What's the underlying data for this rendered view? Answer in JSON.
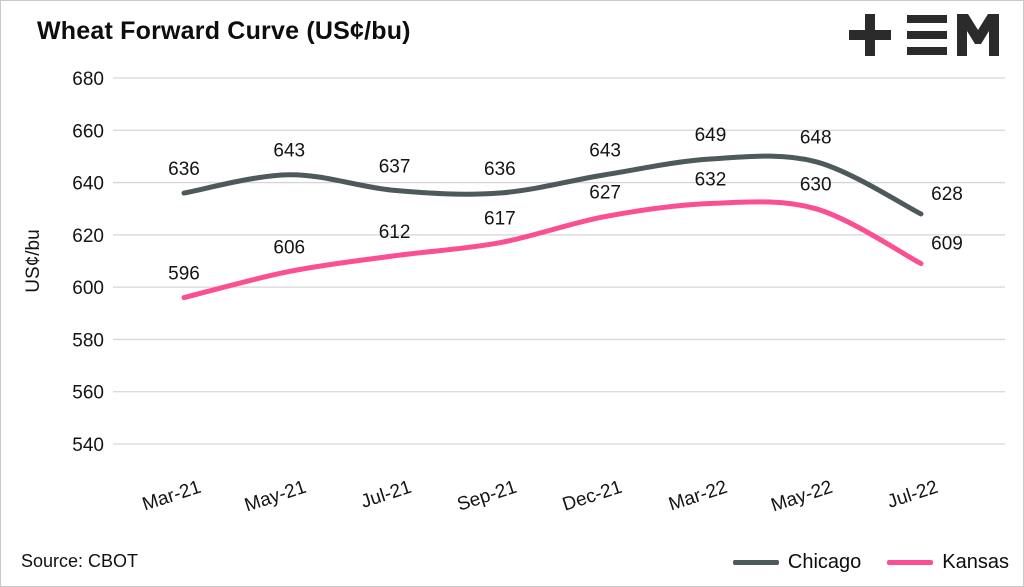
{
  "title": "Wheat Forward Curve (US¢/bu)",
  "source": "Source: CBOT",
  "logo_name": "TEM",
  "colors": {
    "chicago": "#4e595c",
    "kansas": "#fb4f93",
    "grid": "#d6d6d6",
    "text": "#141414",
    "logo": "#2b2b2b"
  },
  "chart_data": {
    "type": "line",
    "title": "Wheat Forward Curve (US¢/bu)",
    "categories": [
      "Mar-21",
      "May-21",
      "Jul-21",
      "Sep-21",
      "Dec-21",
      "Mar-22",
      "May-22",
      "Jul-22"
    ],
    "series": [
      {
        "name": "Chicago",
        "color": "#4e595c",
        "values": [
          636,
          643,
          637,
          636,
          643,
          649,
          648,
          628
        ]
      },
      {
        "name": "Kansas",
        "color": "#fb4f93",
        "values": [
          596,
          606,
          612,
          617,
          627,
          632,
          630,
          609
        ]
      }
    ],
    "xlabel": "",
    "ylabel": "US¢/bu",
    "ylim": [
      540,
      680
    ],
    "ytick_step": 20,
    "grid": true,
    "grid_direction": "horizontal",
    "legend_position": "bottom-right",
    "data_labels": true,
    "source": "Source: CBOT"
  }
}
